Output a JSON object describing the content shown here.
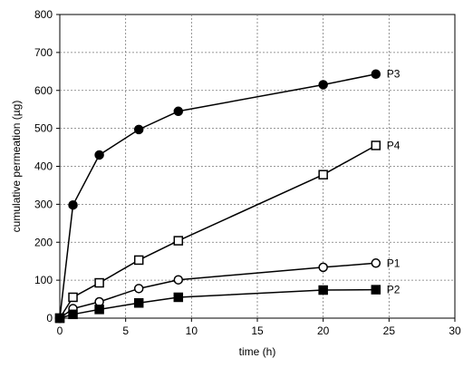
{
  "chart_data": {
    "type": "line",
    "title": "",
    "xlabel": "time (h)",
    "ylabel": "cumulative permeation (µg)",
    "xlim": [
      0,
      30
    ],
    "ylim": [
      0,
      800
    ],
    "xticks": [
      0,
      5,
      10,
      15,
      20,
      25,
      30
    ],
    "yticks": [
      0,
      100,
      200,
      300,
      400,
      500,
      600,
      700,
      800
    ],
    "grid": true,
    "legend": "inline-right",
    "series": [
      {
        "name": "P3",
        "marker": "filled-circle",
        "x": [
          0,
          1,
          3,
          6,
          9,
          20,
          24
        ],
        "y": [
          0,
          298,
          430,
          497,
          545,
          615,
          643
        ]
      },
      {
        "name": "P4",
        "marker": "open-square",
        "x": [
          0,
          1,
          3,
          6,
          9,
          20,
          24
        ],
        "y": [
          0,
          55,
          93,
          153,
          204,
          378,
          455
        ]
      },
      {
        "name": "P1",
        "marker": "open-circle",
        "x": [
          0,
          1,
          3,
          6,
          9,
          20,
          24
        ],
        "y": [
          0,
          25,
          43,
          78,
          101,
          134,
          145
        ]
      },
      {
        "name": "P2",
        "marker": "filled-square",
        "x": [
          0,
          1,
          3,
          6,
          9,
          20,
          24
        ],
        "y": [
          0,
          10,
          23,
          40,
          55,
          74,
          75
        ]
      }
    ]
  }
}
